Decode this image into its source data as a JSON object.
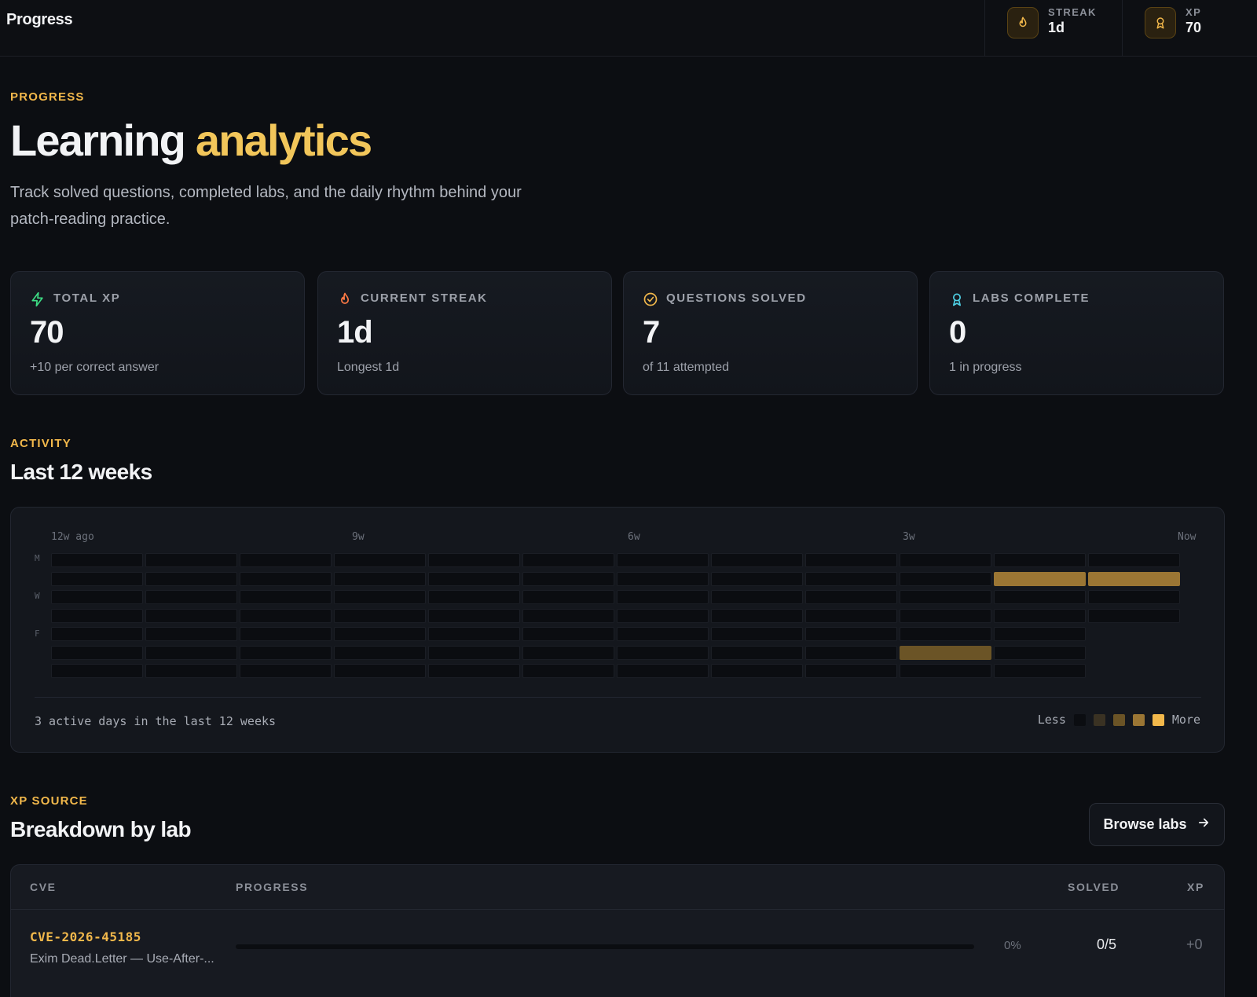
{
  "topbar": {
    "title": "Progress",
    "streak": {
      "label": "STREAK",
      "value": "1d",
      "icon": "flame-icon"
    },
    "xp": {
      "label": "XP",
      "value": "70",
      "icon": "award-icon"
    }
  },
  "hero": {
    "eyebrow": "PROGRESS",
    "title_main": "Learning",
    "title_accent": "analytics",
    "lead": "Track solved questions, completed labs, and the daily rhythm behind your patch-reading practice."
  },
  "stats": [
    {
      "label": "TOTAL XP",
      "value": "70",
      "sub": "+10 per correct answer",
      "icon": "bolt-icon",
      "color": "#3ddc84"
    },
    {
      "label": "CURRENT STREAK",
      "value": "1d",
      "sub": "Longest 1d",
      "icon": "flame-icon",
      "color": "#ff7a45"
    },
    {
      "label": "QUESTIONS SOLVED",
      "value": "7",
      "sub": "of 11 attempted",
      "icon": "check-circle-icon",
      "color": "#f2b84b"
    },
    {
      "label": "LABS COMPLETE",
      "value": "0",
      "sub": "1 in progress",
      "icon": "award-icon",
      "color": "#4fd1e6"
    }
  ],
  "activity": {
    "eyebrow": "ACTIVITY",
    "title": "Last 12 weeks",
    "week_ticks": [
      "12w ago",
      "9w",
      "6w",
      "3w",
      "Now"
    ],
    "day_labels": [
      "M",
      "W",
      "F"
    ],
    "footer": "3 active days in the last 12 weeks",
    "legend_less": "Less",
    "legend_more": "More",
    "legend_colors": [
      "#0b0d11",
      "#3a3223",
      "#6b5426",
      "#9b7634",
      "#f2b84b"
    ],
    "grid_levels": [
      [
        0,
        0,
        0,
        0,
        0,
        0,
        0,
        0,
        0,
        0,
        0,
        0
      ],
      [
        0,
        0,
        0,
        0,
        0,
        0,
        0,
        0,
        0,
        0,
        3,
        3
      ],
      [
        0,
        0,
        0,
        0,
        0,
        0,
        0,
        0,
        0,
        0,
        0,
        0
      ],
      [
        0,
        0,
        0,
        0,
        0,
        0,
        0,
        0,
        0,
        0,
        0,
        0
      ],
      [
        0,
        0,
        0,
        0,
        0,
        0,
        0,
        0,
        0,
        0,
        0,
        -1
      ],
      [
        0,
        0,
        0,
        0,
        0,
        0,
        0,
        0,
        0,
        2,
        0,
        -1
      ],
      [
        0,
        0,
        0,
        0,
        0,
        0,
        0,
        0,
        0,
        0,
        0,
        -1
      ]
    ]
  },
  "breakdown": {
    "eyebrow": "XP SOURCE",
    "title": "Breakdown by lab",
    "browse_label": "Browse labs",
    "columns": {
      "cve": "CVE",
      "progress": "PROGRESS",
      "solved": "SOLVED",
      "xp": "XP"
    },
    "rows": [
      {
        "cve": "CVE-2026-45185",
        "name": "Exim Dead.Letter — Use-After-...",
        "progress": 0,
        "progress_label": "0%",
        "solved": "0/5",
        "xp": "+0"
      }
    ]
  }
}
